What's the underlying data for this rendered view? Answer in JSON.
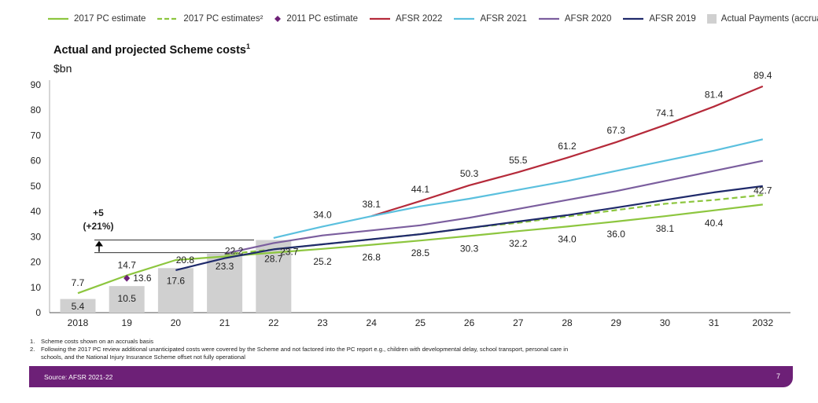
{
  "legend": [
    {
      "label": "2017 PC estimate",
      "kind": "line",
      "color": "#8dc63f",
      "dash": false
    },
    {
      "label": "2017 PC estimates²",
      "kind": "line",
      "color": "#8dc63f",
      "dash": true
    },
    {
      "label": "2011 PC estimate",
      "kind": "diamond",
      "color": "#6d2077"
    },
    {
      "label": "AFSR 2022",
      "kind": "line",
      "color": "#b52a3a"
    },
    {
      "label": "AFSR 2021",
      "kind": "line",
      "color": "#5bc0de"
    },
    {
      "label": "AFSR 2020",
      "kind": "line",
      "color": "#7b5e9e"
    },
    {
      "label": "AFSR 2019",
      "kind": "line",
      "color": "#1f2a6b"
    },
    {
      "label": "Actual Payments (accruals)",
      "kind": "box",
      "color": "#d0d0d0"
    }
  ],
  "title": "Actual and projected Scheme costs",
  "title_sup": "1",
  "unit": "$bn",
  "footnotes": [
    {
      "num": "1.",
      "text": "Scheme costs shown on an accruals basis"
    },
    {
      "num": "2.",
      "text": "Following the 2017 PC review additional unanticipated costs were covered by the Scheme and not factored into the PC report e.g., children with developmental delay, school transport, personal care in schools, and the National Injury Insurance Scheme offset not fully operational"
    }
  ],
  "footer": {
    "source": "Source: AFSR 2021-22",
    "page": "7"
  },
  "chart_data": {
    "type": "line",
    "categories": [
      "2018",
      "19",
      "20",
      "21",
      "22",
      "23",
      "24",
      "25",
      "26",
      "27",
      "28",
      "29",
      "30",
      "31",
      "2032"
    ],
    "ylim": [
      0,
      90
    ],
    "yticks": [
      0,
      10,
      20,
      30,
      40,
      50,
      60,
      70,
      80,
      90
    ],
    "ylabel": "$bn",
    "grid": false,
    "legend_position": "top",
    "bars": {
      "name": "Actual Payments (accruals)",
      "color": "#d0d0d0",
      "values": [
        5.4,
        10.5,
        17.6,
        23.3,
        28.7
      ],
      "labels": [
        "5.4",
        "10.5",
        "17.6",
        "23.3",
        "28.7"
      ]
    },
    "series": [
      {
        "name": "2017 PC estimate",
        "color": "#8dc63f",
        "dash": false,
        "values": [
          7.7,
          14.7,
          20.8,
          22.2,
          23.7,
          25.2,
          26.8,
          28.5,
          30.3,
          32.2,
          34.0,
          36.0,
          38.1,
          40.4,
          42.7
        ],
        "labels": [
          "7.7",
          "14.7",
          "20.8",
          "22.2",
          "23.7",
          "25.2",
          "26.8",
          "28.5",
          "30.3",
          "32.2",
          "34.0",
          "36.0",
          "38.1",
          "40.4",
          "42.7"
        ]
      },
      {
        "name": "2017 PC estimates²",
        "color": "#8dc63f",
        "dash": true,
        "values": [
          null,
          null,
          null,
          23.0,
          25.0,
          27.0,
          29.0,
          31.0,
          33.5,
          35.5,
          38.0,
          40.5,
          43.0,
          44.5,
          46.5
        ]
      },
      {
        "name": "AFSR 2022",
        "color": "#b52a3a",
        "dash": false,
        "values": [
          null,
          null,
          null,
          null,
          null,
          null,
          38.1,
          44.1,
          50.3,
          55.5,
          61.2,
          67.3,
          74.1,
          81.4,
          89.4
        ],
        "labels": [
          null,
          null,
          null,
          null,
          null,
          null,
          "38.1",
          "44.1",
          "50.3",
          "55.5",
          "61.2",
          "67.3",
          "74.1",
          "81.4",
          "89.4"
        ]
      },
      {
        "name": "AFSR 2021",
        "color": "#5bc0de",
        "dash": false,
        "values": [
          null,
          null,
          null,
          null,
          29.5,
          34.0,
          38.1,
          42.0,
          45.0,
          48.5,
          52.0,
          56.0,
          60.0,
          64.0,
          68.5
        ],
        "labels": [
          null,
          null,
          null,
          null,
          null,
          "34.0",
          null,
          null,
          null,
          null,
          null,
          null,
          null,
          null,
          null
        ]
      },
      {
        "name": "AFSR 2020",
        "color": "#7b5e9e",
        "dash": false,
        "values": [
          null,
          null,
          null,
          23.3,
          27.5,
          30.5,
          32.5,
          34.5,
          37.5,
          41.0,
          44.5,
          48.0,
          52.0,
          56.0,
          60.0
        ]
      },
      {
        "name": "AFSR 2019",
        "color": "#1f2a6b",
        "dash": false,
        "values": [
          null,
          null,
          16.8,
          21.5,
          25.0,
          27.0,
          29.0,
          31.0,
          33.5,
          36.0,
          38.5,
          41.5,
          44.5,
          47.5,
          50.0
        ]
      }
    ],
    "points": [
      {
        "name": "2011 PC estimate",
        "color": "#6d2077",
        "x": "19",
        "y": 13.6,
        "label": "13.6"
      }
    ],
    "annotation": {
      "line1": "+5",
      "line2": "(+21%)",
      "from": 23.7,
      "to": 28.7
    }
  }
}
